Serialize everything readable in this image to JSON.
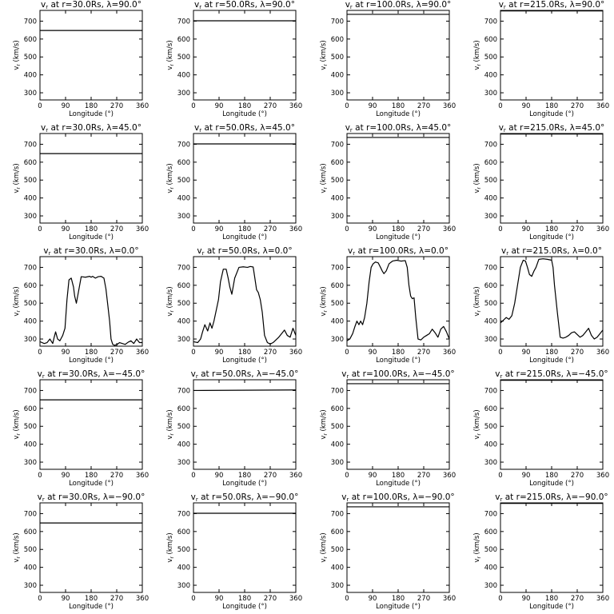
{
  "chart_data": {
    "type": "line",
    "layout": {
      "rows": 5,
      "cols": 4
    },
    "xlim": [
      0,
      360
    ],
    "ylim": [
      260,
      760
    ],
    "xticks": [
      0,
      90,
      180,
      270,
      360
    ],
    "yticks": [
      300,
      400,
      500,
      600,
      700
    ],
    "xlabel": "Longitude (°)",
    "ylabel": "vr (km/s)",
    "ylabel_main": "v",
    "ylabel_sub": "r",
    "ylabel_rest": " (km/s)",
    "panels": [
      {
        "title": "vr at r=30.0Rs, λ=90.0°",
        "title_main": "v",
        "title_sub": "r",
        "title_rest": " at r=30.0Rs, λ=90.0°",
        "x": [
          0,
          360
        ],
        "y": [
          648,
          648
        ]
      },
      {
        "title": "vr at r=50.0Rs, λ=90.0°",
        "title_main": "v",
        "title_sub": "r",
        "title_rest": " at r=50.0Rs, λ=90.0°",
        "x": [
          0,
          360
        ],
        "y": [
          702,
          702
        ]
      },
      {
        "title": "vr at r=100.0Rs, λ=90.0°",
        "title_main": "v",
        "title_sub": "r",
        "title_rest": " at r=100.0Rs, λ=90.0°",
        "x": [
          0,
          360
        ],
        "y": [
          738,
          738
        ]
      },
      {
        "title": "vr at r=215.0Rs, λ=90.0°",
        "title_main": "v",
        "title_sub": "r",
        "title_rest": " at r=215.0Rs, λ=90.0°",
        "x": [
          0,
          360
        ],
        "y": [
          757,
          757
        ]
      },
      {
        "title": "vr at r=30.0Rs, λ=45.0°",
        "title_main": "v",
        "title_sub": "r",
        "title_rest": " at r=30.0Rs, λ=45.0°",
        "x": [
          0,
          360
        ],
        "y": [
          648,
          648
        ]
      },
      {
        "title": "vr at r=50.0Rs, λ=45.0°",
        "title_main": "v",
        "title_sub": "r",
        "title_rest": " at r=50.0Rs, λ=45.0°",
        "x": [
          0,
          360
        ],
        "y": [
          702,
          702
        ]
      },
      {
        "title": "vr at r=100.0Rs, λ=45.0°",
        "title_main": "v",
        "title_sub": "r",
        "title_rest": " at r=100.0Rs, λ=45.0°",
        "x": [
          0,
          360
        ],
        "y": [
          738,
          738
        ]
      },
      {
        "title": "vr at r=215.0Rs, λ=45.0°",
        "title_main": "v",
        "title_sub": "r",
        "title_rest": " at r=215.0Rs, λ=45.0°",
        "x": [
          0,
          360
        ],
        "y": [
          757,
          757
        ]
      },
      {
        "title": "vr at r=30.0Rs, λ=0.0°",
        "title_main": "v",
        "title_sub": "r",
        "title_rest": " at r=30.0Rs, λ=0.0°",
        "x": [
          0,
          15,
          25,
          35,
          45,
          50,
          55,
          62,
          70,
          80,
          88,
          95,
          102,
          110,
          118,
          122,
          128,
          135,
          145,
          160,
          175,
          180,
          185,
          195,
          205,
          215,
          225,
          232,
          240,
          245,
          250,
          256,
          262,
          270,
          280,
          290,
          300,
          310,
          320,
          330,
          340,
          350,
          360
        ],
        "y": [
          285,
          275,
          280,
          300,
          275,
          310,
          340,
          300,
          290,
          320,
          360,
          520,
          630,
          640,
          590,
          540,
          500,
          560,
          648,
          645,
          650,
          645,
          650,
          640,
          648,
          650,
          640,
          580,
          470,
          400,
          300,
          270,
          265,
          268,
          280,
          275,
          270,
          282,
          290,
          275,
          300,
          280,
          280
        ]
      },
      {
        "title": "vr at r=50.0Rs, λ=0.0°",
        "title_main": "v",
        "title_sub": "r",
        "title_rest": " at r=50.0Rs, λ=0.0°",
        "x": [
          0,
          15,
          25,
          32,
          40,
          50,
          58,
          65,
          72,
          80,
          88,
          95,
          105,
          115,
          122,
          128,
          135,
          145,
          160,
          175,
          190,
          200,
          210,
          215,
          222,
          228,
          235,
          242,
          250,
          260,
          270,
          280,
          290,
          300,
          310,
          320,
          330,
          340,
          350,
          360
        ],
        "y": [
          285,
          280,
          300,
          340,
          380,
          345,
          390,
          360,
          400,
          460,
          520,
          620,
          690,
          690,
          640,
          590,
          550,
          640,
          700,
          703,
          700,
          705,
          702,
          650,
          575,
          560,
          520,
          450,
          320,
          280,
          272,
          280,
          295,
          310,
          330,
          350,
          320,
          310,
          360,
          320
        ]
      },
      {
        "title": "vr at r=100.0Rs, λ=0.0°",
        "title_main": "v",
        "title_sub": "r",
        "title_rest": " at r=100.0Rs, λ=0.0°",
        "x": [
          0,
          10,
          20,
          28,
          35,
          42,
          48,
          55,
          62,
          70,
          78,
          85,
          92,
          100,
          110,
          118,
          124,
          130,
          138,
          148,
          160,
          175,
          190,
          205,
          212,
          218,
          224,
          230,
          236,
          242,
          250,
          260,
          270,
          280,
          290,
          300,
          310,
          320,
          330,
          340,
          350,
          360
        ],
        "y": [
          290,
          300,
          330,
          370,
          400,
          380,
          400,
          380,
          420,
          500,
          620,
          700,
          720,
          730,
          725,
          700,
          680,
          665,
          680,
          720,
          735,
          740,
          735,
          738,
          700,
          600,
          540,
          525,
          530,
          420,
          300,
          295,
          310,
          320,
          330,
          355,
          335,
          310,
          355,
          370,
          340,
          300
        ]
      },
      {
        "title": "vr at r=215.0Rs, λ=0.0°",
        "title_main": "v",
        "title_sub": "r",
        "title_rest": " at r=215.0Rs, λ=0.0°",
        "x": [
          0,
          10,
          20,
          30,
          40,
          50,
          60,
          70,
          80,
          88,
          95,
          102,
          110,
          118,
          125,
          135,
          150,
          165,
          180,
          185,
          190,
          200,
          210,
          220,
          230,
          240,
          250,
          260,
          270,
          280,
          290,
          300,
          310,
          320,
          330,
          340,
          350,
          360
        ],
        "y": [
          390,
          405,
          420,
          410,
          430,
          500,
          600,
          700,
          740,
          735,
          700,
          660,
          650,
          680,
          700,
          745,
          748,
          745,
          740,
          700,
          600,
          450,
          310,
          305,
          310,
          320,
          335,
          340,
          325,
          310,
          320,
          340,
          360,
          320,
          300,
          310,
          330,
          350
        ]
      },
      {
        "title": "vr at r=30.0Rs, λ=-45.0°",
        "title_main": "v",
        "title_sub": "r",
        "title_rest": " at r=30.0Rs, λ=−45.0°",
        "x": [
          0,
          360
        ],
        "y": [
          648,
          648
        ]
      },
      {
        "title": "vr at r=50.0Rs, λ=-45.0°",
        "title_main": "v",
        "title_sub": "r",
        "title_rest": " at r=50.0Rs, λ=−45.0°",
        "x": [
          0,
          360
        ],
        "y": [
          700,
          703
        ]
      },
      {
        "title": "vr at r=100.0Rs, λ=-45.0°",
        "title_main": "v",
        "title_sub": "r",
        "title_rest": " at r=100.0Rs, λ=−45.0°",
        "x": [
          0,
          360
        ],
        "y": [
          738,
          738
        ]
      },
      {
        "title": "vr at r=215.0Rs, λ=-45.0°",
        "title_main": "v",
        "title_sub": "r",
        "title_rest": " at r=215.0Rs, λ=−45.0°",
        "x": [
          0,
          360
        ],
        "y": [
          757,
          757
        ]
      },
      {
        "title": "vr at r=30.0Rs, λ=-90.0°",
        "title_main": "v",
        "title_sub": "r",
        "title_rest": " at r=30.0Rs, λ=−90.0°",
        "x": [
          0,
          360
        ],
        "y": [
          648,
          648
        ]
      },
      {
        "title": "vr at r=50.0Rs, λ=-90.0°",
        "title_main": "v",
        "title_sub": "r",
        "title_rest": " at r=50.0Rs, λ=−90.0°",
        "x": [
          0,
          360
        ],
        "y": [
          702,
          702
        ]
      },
      {
        "title": "vr at r=100.0Rs, λ=-90.0°",
        "title_main": "v",
        "title_sub": "r",
        "title_rest": " at r=100.0Rs, λ=−90.0°",
        "x": [
          0,
          360
        ],
        "y": [
          738,
          738
        ]
      },
      {
        "title": "vr at r=215.0Rs, λ=-90.0°",
        "title_main": "v",
        "title_sub": "r",
        "title_rest": " at r=215.0Rs, λ=−90.0°",
        "x": [
          0,
          360
        ],
        "y": [
          757,
          757
        ]
      }
    ]
  }
}
